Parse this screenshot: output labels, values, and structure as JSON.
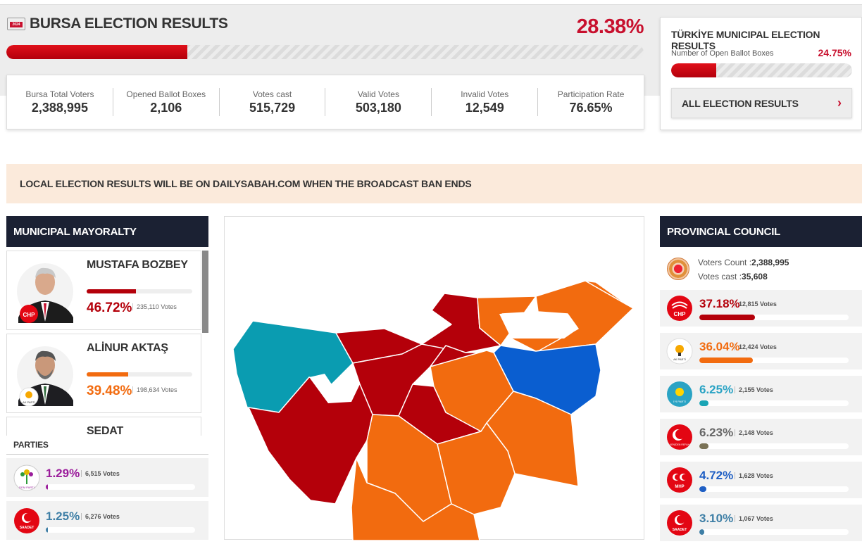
{
  "header": {
    "badge_year": "2024",
    "title": "BURSA ELECTION RESULTS",
    "percent": "28.38%",
    "progress": 0.2838
  },
  "stats": [
    {
      "label": "Bursa Total Voters",
      "value": "2,388,995"
    },
    {
      "label": "Opened Ballot Boxes",
      "value": "2,106"
    },
    {
      "label": "Votes cast",
      "value": "515,729"
    },
    {
      "label": "Valid Votes",
      "value": "503,180"
    },
    {
      "label": "Invalid Votes",
      "value": "12,549"
    },
    {
      "label": "Participation Rate",
      "value": "76.65%"
    }
  ],
  "turkiye": {
    "title": "TÜRKİYE MUNICIPAL ELECTION RESULTS",
    "subtitle": "Number of Open Ballot Boxes",
    "percent": "24.75%",
    "progress": 0.2475,
    "button": "ALL ELECTION RESULTS"
  },
  "notice": "LOCAL ELECTION RESULTS WILL BE ON DAILYSABAH.COM WHEN THE BROADCAST BAN ENDS",
  "mayoralty": {
    "title": "MUNICIPAL MAYORALTY",
    "candidates": [
      {
        "name": "MUSTAFA BOZBEY",
        "percent": "46.72%",
        "votes": "235,110 Votes",
        "share": 0.4672,
        "color": "#b4000a",
        "party": "CHP"
      },
      {
        "name": "ALİNUR AKTAŞ",
        "percent": "39.48%",
        "votes": "198,634 Votes",
        "share": 0.3948,
        "color": "#f26b0f",
        "party": "AK PARTİ"
      },
      {
        "name": "SEDAT",
        "percent": "",
        "votes": "",
        "share": 0,
        "color": "#333",
        "party": ""
      }
    ],
    "parties_label": "PARTIES",
    "parties": [
      {
        "percent": "1.29%",
        "votes": "6,515 Votes",
        "share": 0.0129,
        "color": "#9b1d9b",
        "logo_text": "DEM PARTİ"
      },
      {
        "percent": "1.25%",
        "votes": "6,276 Votes",
        "share": 0.0125,
        "color": "#3f7fa6",
        "logo_text": "SAADET"
      }
    ]
  },
  "council": {
    "title": "PROVINCIAL COUNCIL",
    "voters_count_label": "Voters Count :",
    "voters_count": "2,388,995",
    "votes_cast_label": "Votes cast :",
    "votes_cast": "35,608",
    "parties": [
      {
        "percent": "37.18%",
        "votes": "12,815 Votes",
        "share": 0.3718,
        "color": "#b4000a",
        "bar_color": "#b4000a",
        "logo_text": "CHP"
      },
      {
        "percent": "36.04%",
        "votes": "12,424 Votes",
        "share": 0.3604,
        "color": "#f26b0f",
        "bar_color": "#f26b0f",
        "logo_text": "AK PARTİ"
      },
      {
        "percent": "6.25%",
        "votes": "2,155 Votes",
        "share": 0.0625,
        "color": "#2aa3c4",
        "bar_color": "#1aa5b5",
        "logo_text": "İYİ PARTİ"
      },
      {
        "percent": "6.23%",
        "votes": "2,148 Votes",
        "share": 0.0623,
        "color": "#666666",
        "bar_color": "#7a7256",
        "logo_text": "YENİDEN REFAH"
      },
      {
        "percent": "4.72%",
        "votes": "1,628 Votes",
        "share": 0.0472,
        "color": "#1f5fc4",
        "bar_color": "#1f5fc4",
        "logo_text": "MHP"
      },
      {
        "percent": "3.10%",
        "votes": "1,067 Votes",
        "share": 0.031,
        "color": "#3f7fa6",
        "bar_color": "#3f7fa6",
        "logo_text": "SAADET"
      }
    ]
  }
}
